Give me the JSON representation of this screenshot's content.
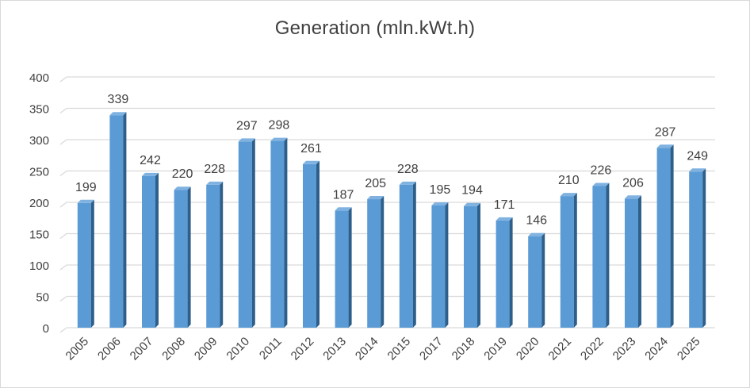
{
  "chart_data": {
    "type": "bar",
    "title": "Generation (mln.kWt.h)",
    "xlabel": "",
    "ylabel": "",
    "ylim": [
      0,
      400
    ],
    "yticks": [
      0,
      50,
      100,
      150,
      200,
      250,
      300,
      350,
      400
    ],
    "grid": true,
    "legend": "none",
    "categories": [
      "2005",
      "2006",
      "2007",
      "2008",
      "2009",
      "2010",
      "2011",
      "2012",
      "2013",
      "2014",
      "2015",
      "2017",
      "2018",
      "2019",
      "2020",
      "2021",
      "2022",
      "2023",
      "2024",
      "2025"
    ],
    "values": [
      199,
      339,
      242,
      220,
      228,
      297,
      298,
      261,
      187,
      205,
      228,
      195,
      194,
      171,
      146,
      210,
      226,
      206,
      287,
      249
    ],
    "colors": {
      "bar_front": "#5b9bd5",
      "bar_side": "#2e5f8a",
      "bar_top": "#7fb2e0",
      "grid": "#d9d9d9",
      "text": "#404040"
    }
  }
}
